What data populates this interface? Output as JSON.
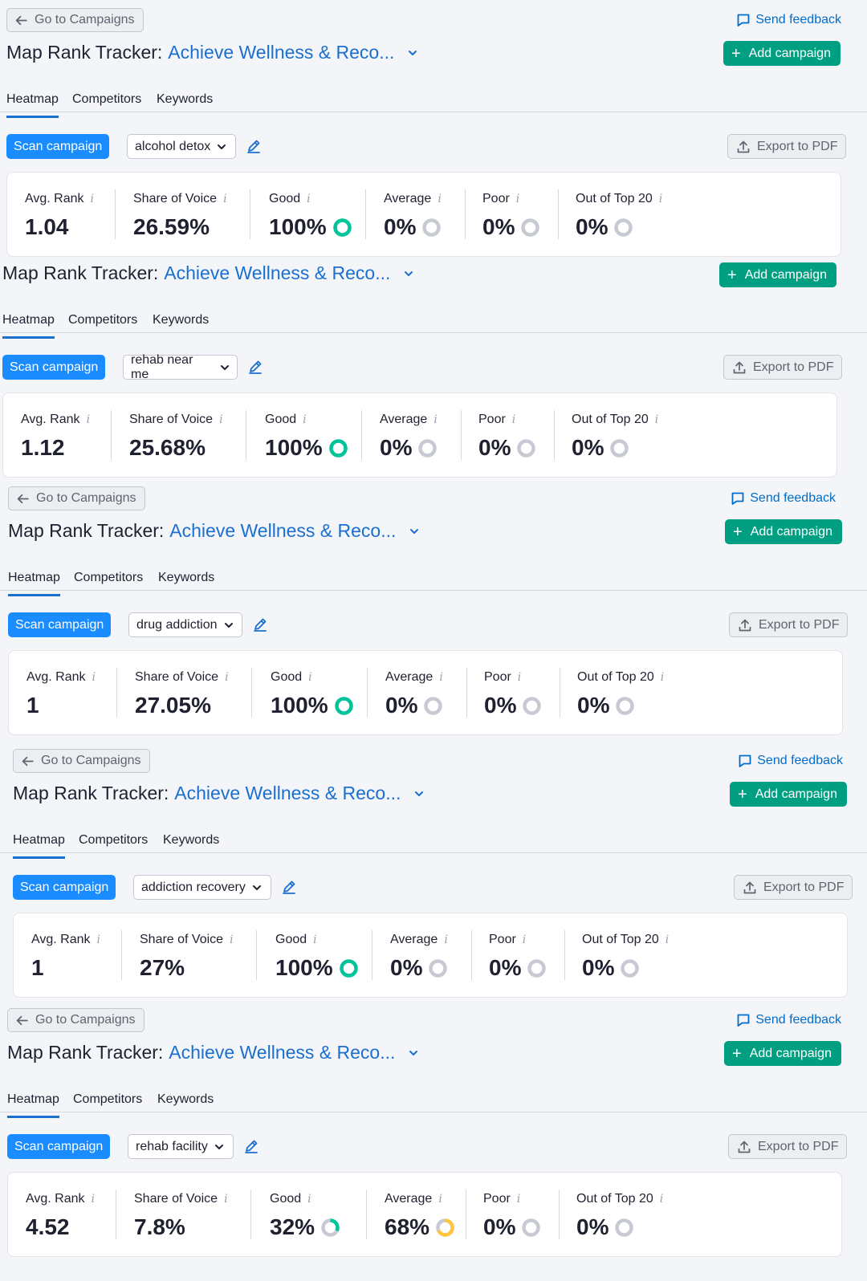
{
  "header": {
    "back_label": "Go to Campaigns",
    "feedback_label": "Send feedback",
    "title_label": "Map Rank Tracker:",
    "campaign_name": "Achieve Wellness & Reco...",
    "add_campaign_label": "Add campaign"
  },
  "tabs": [
    "Heatmap",
    "Competitors",
    "Keywords"
  ],
  "toolbar": {
    "scan_label": "Scan campaign",
    "export_label": "Export to PDF"
  },
  "metric_labels": [
    "Avg. Rank",
    "Share of Voice",
    "Good",
    "Average",
    "Poor",
    "Out of Top 20"
  ],
  "info_glyph": "i",
  "colors": {
    "accent": "#1a8cff",
    "add": "#009f81",
    "good": "#00c49a",
    "average": "#ffc53d",
    "empty": "#c7cad3",
    "link": "#1a6fcf"
  },
  "icons": [
    "arrow-left-icon",
    "chat-icon",
    "chevron-down-icon",
    "plus-icon",
    "pencil-icon",
    "upload-icon",
    "info-icon",
    "donut-icon"
  ],
  "panels": [
    {
      "keyword": "alcohol detox",
      "avg_rank": "1.04",
      "share_of_voice": "26.59%",
      "good": "100%",
      "average": "0%",
      "poor": "0%",
      "out_top20": "0%",
      "good_fraction": 1.0,
      "average_fraction": 0,
      "poor_fraction": 0,
      "out_fraction": 0
    },
    {
      "keyword": "rehab near me",
      "avg_rank": "1.12",
      "share_of_voice": "25.68%",
      "good": "100%",
      "average": "0%",
      "poor": "0%",
      "out_top20": "0%",
      "good_fraction": 1.0,
      "average_fraction": 0,
      "poor_fraction": 0,
      "out_fraction": 0
    },
    {
      "keyword": "drug addiction",
      "avg_rank": "1",
      "share_of_voice": "27.05%",
      "good": "100%",
      "average": "0%",
      "poor": "0%",
      "out_top20": "0%",
      "good_fraction": 1.0,
      "average_fraction": 0,
      "poor_fraction": 0,
      "out_fraction": 0
    },
    {
      "keyword": "addiction recovery",
      "avg_rank": "1",
      "share_of_voice": "27%",
      "good": "100%",
      "average": "0%",
      "poor": "0%",
      "out_top20": "0%",
      "good_fraction": 1.0,
      "average_fraction": 0,
      "poor_fraction": 0,
      "out_fraction": 0
    },
    {
      "keyword": "rehab facility",
      "avg_rank": "4.52",
      "share_of_voice": "7.8%",
      "good": "32%",
      "average": "68%",
      "poor": "0%",
      "out_top20": "0%",
      "good_fraction": 0.32,
      "average_fraction": 0.68,
      "poor_fraction": 0,
      "out_fraction": 0
    }
  ]
}
